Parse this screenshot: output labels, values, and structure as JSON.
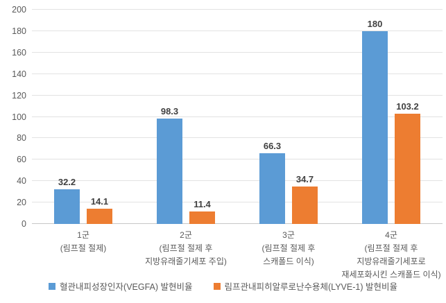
{
  "chart_data": {
    "type": "bar",
    "title": "",
    "xlabel": "",
    "ylabel": "",
    "ylim": [
      0,
      200
    ],
    "ytick_step": 20,
    "grid": true,
    "legend_position": "bottom",
    "categories": [
      [
        "1군",
        "(림프절 절제)"
      ],
      [
        "2군",
        "(림프절 절제 후",
        "지방유래줄기세포 주입)"
      ],
      [
        "3군",
        "(림프절 절제 후",
        "스캐폴드 이식)"
      ],
      [
        "4군",
        "(림프절 절제 후",
        "지방유래줄기세포로",
        "재세포화시킨 스캐폴드 이식)"
      ]
    ],
    "series": [
      {
        "name": "혈관내피성장인자(VEGFA) 발현비율",
        "color": "#5B9BD5",
        "values": [
          32.2,
          98.3,
          66.3,
          180
        ],
        "value_labels": [
          "32.2",
          "98.3",
          "66.3",
          "180"
        ]
      },
      {
        "name": "림프관내피히알루로난수용체(LYVE-1) 발현비율",
        "color": "#ED7D31",
        "values": [
          14.1,
          11.4,
          34.7,
          103.2
        ],
        "value_labels": [
          "14.1",
          "11.4",
          "34.7",
          "103.2"
        ]
      }
    ],
    "colors": {
      "gridline": "#e2e2e2",
      "axis_line": "#c6c6c6",
      "tick_label": "#595959",
      "value_label": "#404040",
      "background": "#ffffff"
    }
  }
}
